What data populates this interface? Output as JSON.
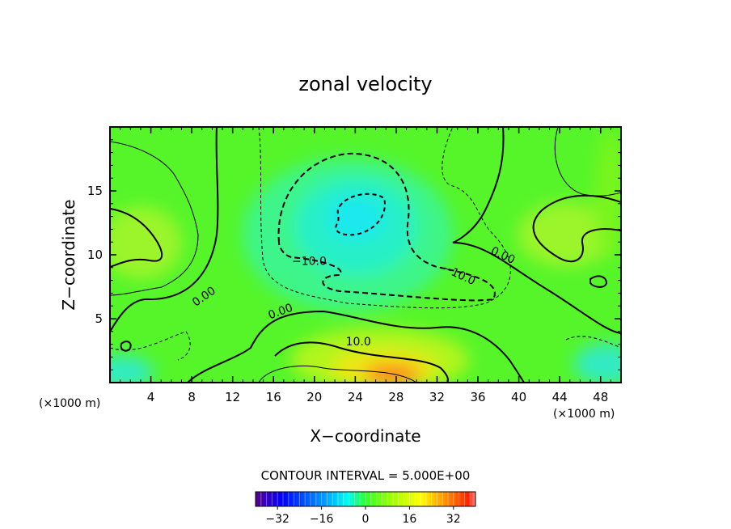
{
  "chart_data": {
    "type": "heatmap",
    "title": "zonal velocity",
    "xlabel": "X−coordinate",
    "ylabel": "Z−coordinate",
    "x_unit_left": "(×1000 m)",
    "x_unit_right": "(×1000 m)",
    "xlim": [
      0,
      50
    ],
    "ylim": [
      0,
      20
    ],
    "xticks": [
      4,
      8,
      12,
      16,
      20,
      24,
      28,
      32,
      36,
      40,
      44,
      48
    ],
    "yticks": [
      5,
      10,
      15
    ],
    "contour_labels": [
      {
        "text": "0.00",
        "x": 9.4,
        "y": 6.5,
        "angle": -35
      },
      {
        "text": "−10.0",
        "x": 19.5,
        "y": 9.2,
        "angle": 0
      },
      {
        "text": "0.00",
        "x": 16.8,
        "y": 5.3,
        "angle": -20
      },
      {
        "text": "10.0",
        "x": 24.3,
        "y": 2.9,
        "angle": 0
      },
      {
        "text": "−10.0",
        "x": 34.0,
        "y": 8.2,
        "angle": 25
      },
      {
        "text": "0.00",
        "x": 38.3,
        "y": 9.7,
        "angle": 25
      }
    ],
    "contour_interval_text": "CONTOUR INTERVAL =  5.000E+00",
    "colorbar": {
      "ticks": [
        "−32",
        "−16",
        "0",
        "16",
        "32"
      ],
      "tick_values": [
        -32,
        -16,
        0,
        16,
        32
      ],
      "range": [
        -40,
        40
      ]
    },
    "field_description": "zonal velocity heatmap: mostly 0 to +10 (green), negative core near x=24,z=13 (cyan, about -15), positive jet near x=28,z=1 (orange/red, about +30)"
  },
  "colors": {
    "background": "#ffffff",
    "axis": "#000000",
    "field_low": "#00ffff",
    "field_mid": "#66ff00",
    "field_high": "#ff4000"
  }
}
